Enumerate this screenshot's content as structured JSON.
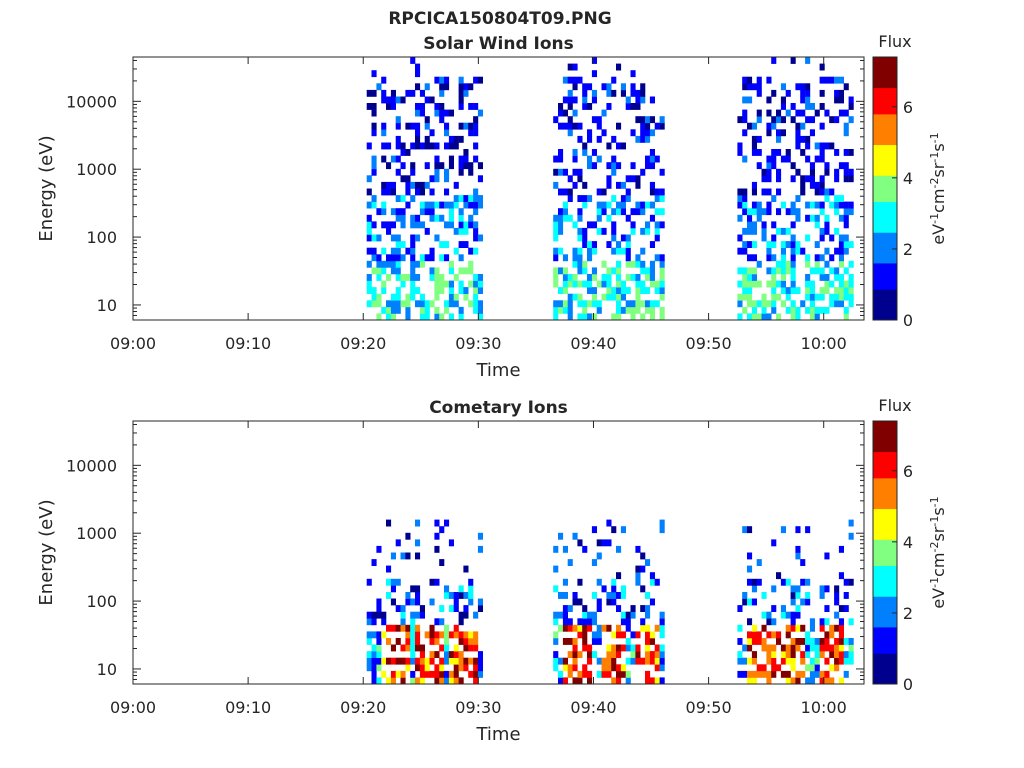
{
  "figure_title": "RPCICA150804T09.PNG",
  "colormap": [
    "#00008f",
    "#0000ff",
    "#0080ff",
    "#00ffff",
    "#80ff80",
    "#ffff00",
    "#ff8000",
    "#ff0000",
    "#800000"
  ],
  "chart_data": [
    {
      "type": "heatmap",
      "title": "Solar Wind Ions",
      "xlabel": "Time",
      "ylabel": "Energy (eV)",
      "x_ticks": [
        "09:00",
        "09:10",
        "09:20",
        "09:30",
        "09:40",
        "09:50",
        "10:00"
      ],
      "xlim_minutes": [
        0,
        63.5
      ],
      "y_scale": "log",
      "y_ticks": [
        "10",
        "100",
        "1000",
        "10000"
      ],
      "ylim": [
        6,
        45000
      ],
      "colorbar": {
        "label": "Flux",
        "unit": "eV-1cm-2sr-1s-1",
        "ticks": [
          "0",
          "2",
          "4",
          "6"
        ],
        "range": [
          0,
          7.4
        ]
      },
      "active_intervals_minutes": [
        [
          20.3,
          30.2
        ],
        [
          36.5,
          46.0
        ],
        [
          52.5,
          62.4
        ]
      ],
      "data_summary": "Sparse low-to-medium flux (mostly 1-4) spread over about 10 eV to 30000 eV during three intervals"
    },
    {
      "type": "heatmap",
      "title": "Cometary Ions",
      "xlabel": "Time",
      "ylabel": "Energy (eV)",
      "x_ticks": [
        "09:00",
        "09:10",
        "09:20",
        "09:30",
        "09:40",
        "09:50",
        "10:00"
      ],
      "xlim_minutes": [
        0,
        63.5
      ],
      "y_scale": "log",
      "y_ticks": [
        "10",
        "100",
        "1000",
        "10000"
      ],
      "ylim": [
        6,
        45000
      ],
      "colorbar": {
        "label": "Flux",
        "unit": "eV-1cm-2sr-1s-1",
        "ticks": [
          "0",
          "2",
          "4",
          "6"
        ],
        "range": [
          0,
          7.4
        ]
      },
      "active_intervals_minutes": [
        [
          20.3,
          30.2
        ],
        [
          36.5,
          46.0
        ],
        [
          52.5,
          62.4
        ]
      ],
      "high_flux_times_minutes": [
        22.5,
        25.5,
        28.5,
        38.5,
        41.5,
        44.5,
        54.5,
        57.0,
        60.5
      ],
      "data_summary": "High flux (5-7) near 10-35 eV during active intervals, sparse low flux up to about 1400 eV"
    }
  ]
}
